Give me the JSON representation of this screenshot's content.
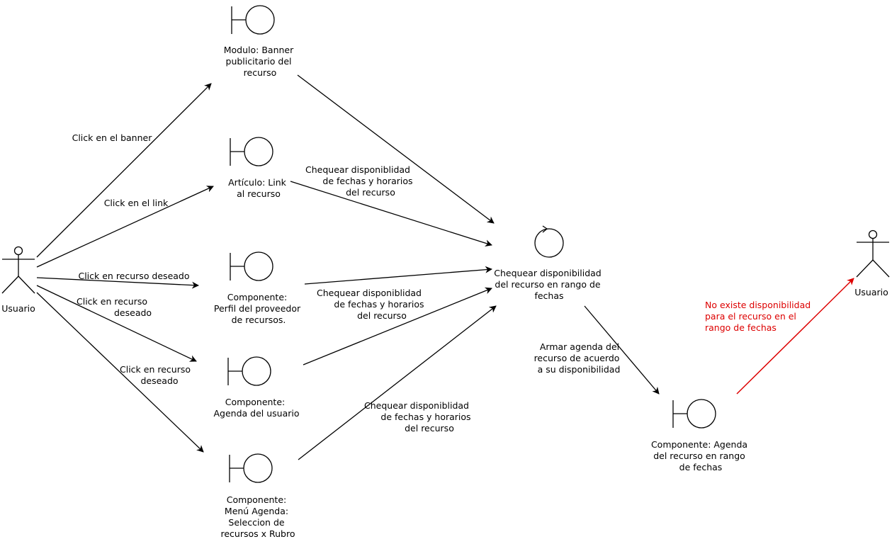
{
  "colors": {
    "stroke": "#000000",
    "alert": "#dd0000"
  },
  "actors": {
    "left": {
      "label": "Usuario",
      "icon": "actor-icon"
    },
    "right": {
      "label": "Usuario",
      "icon": "actor-icon"
    }
  },
  "boundaries": {
    "banner": {
      "icon": "boundary-icon",
      "lines": [
        "Modulo: Banner",
        "publicitario del",
        "recurso"
      ]
    },
    "articulo": {
      "icon": "boundary-icon",
      "lines": [
        "Artículo: Link",
        "al recurso"
      ]
    },
    "perfil": {
      "icon": "boundary-icon",
      "lines": [
        "Componente:",
        "Perfil del proveedor",
        "de recursos."
      ]
    },
    "agenda_usuario": {
      "icon": "boundary-icon",
      "lines": [
        "Componente:",
        "Agenda del usuario"
      ]
    },
    "menu_agenda": {
      "icon": "boundary-icon",
      "lines": [
        "Componente:",
        "Menú Agenda:",
        "Seleccion de",
        "recursos x Rubro"
      ]
    },
    "agenda_recurso": {
      "icon": "boundary-icon",
      "lines": [
        "Componente: Agenda",
        "del recurso en rango",
        "de fechas"
      ]
    }
  },
  "control": {
    "icon": "control-icon",
    "lines": [
      "Chequear disponibilidad",
      "del recurso en rango de",
      "fechas"
    ]
  },
  "edge_labels": {
    "click_banner": [
      "Click en el banner"
    ],
    "click_link": [
      "Click en el link"
    ],
    "click_recurso_1": [
      "Click en recurso deseado"
    ],
    "click_recurso_2": [
      "Click en recurso",
      "deseado"
    ],
    "click_recurso_3": [
      "Click en recurso",
      "deseado"
    ],
    "chequear_1": [
      "Chequear disponiblidad",
      "de fechas y horarios",
      "del recurso"
    ],
    "chequear_2": [
      "Chequear disponiblidad",
      "de fechas y horarios",
      "del recurso"
    ],
    "chequear_3": [
      "Chequear disponiblidad",
      "de fechas y horarios",
      "del recurso"
    ],
    "armar_agenda": [
      "Armar agenda del",
      "recurso de acuerdo",
      "a su disponibilidad"
    ],
    "no_disponible": [
      "No existe disponibilidad",
      "para el recurso en el",
      "rango de fechas"
    ]
  }
}
